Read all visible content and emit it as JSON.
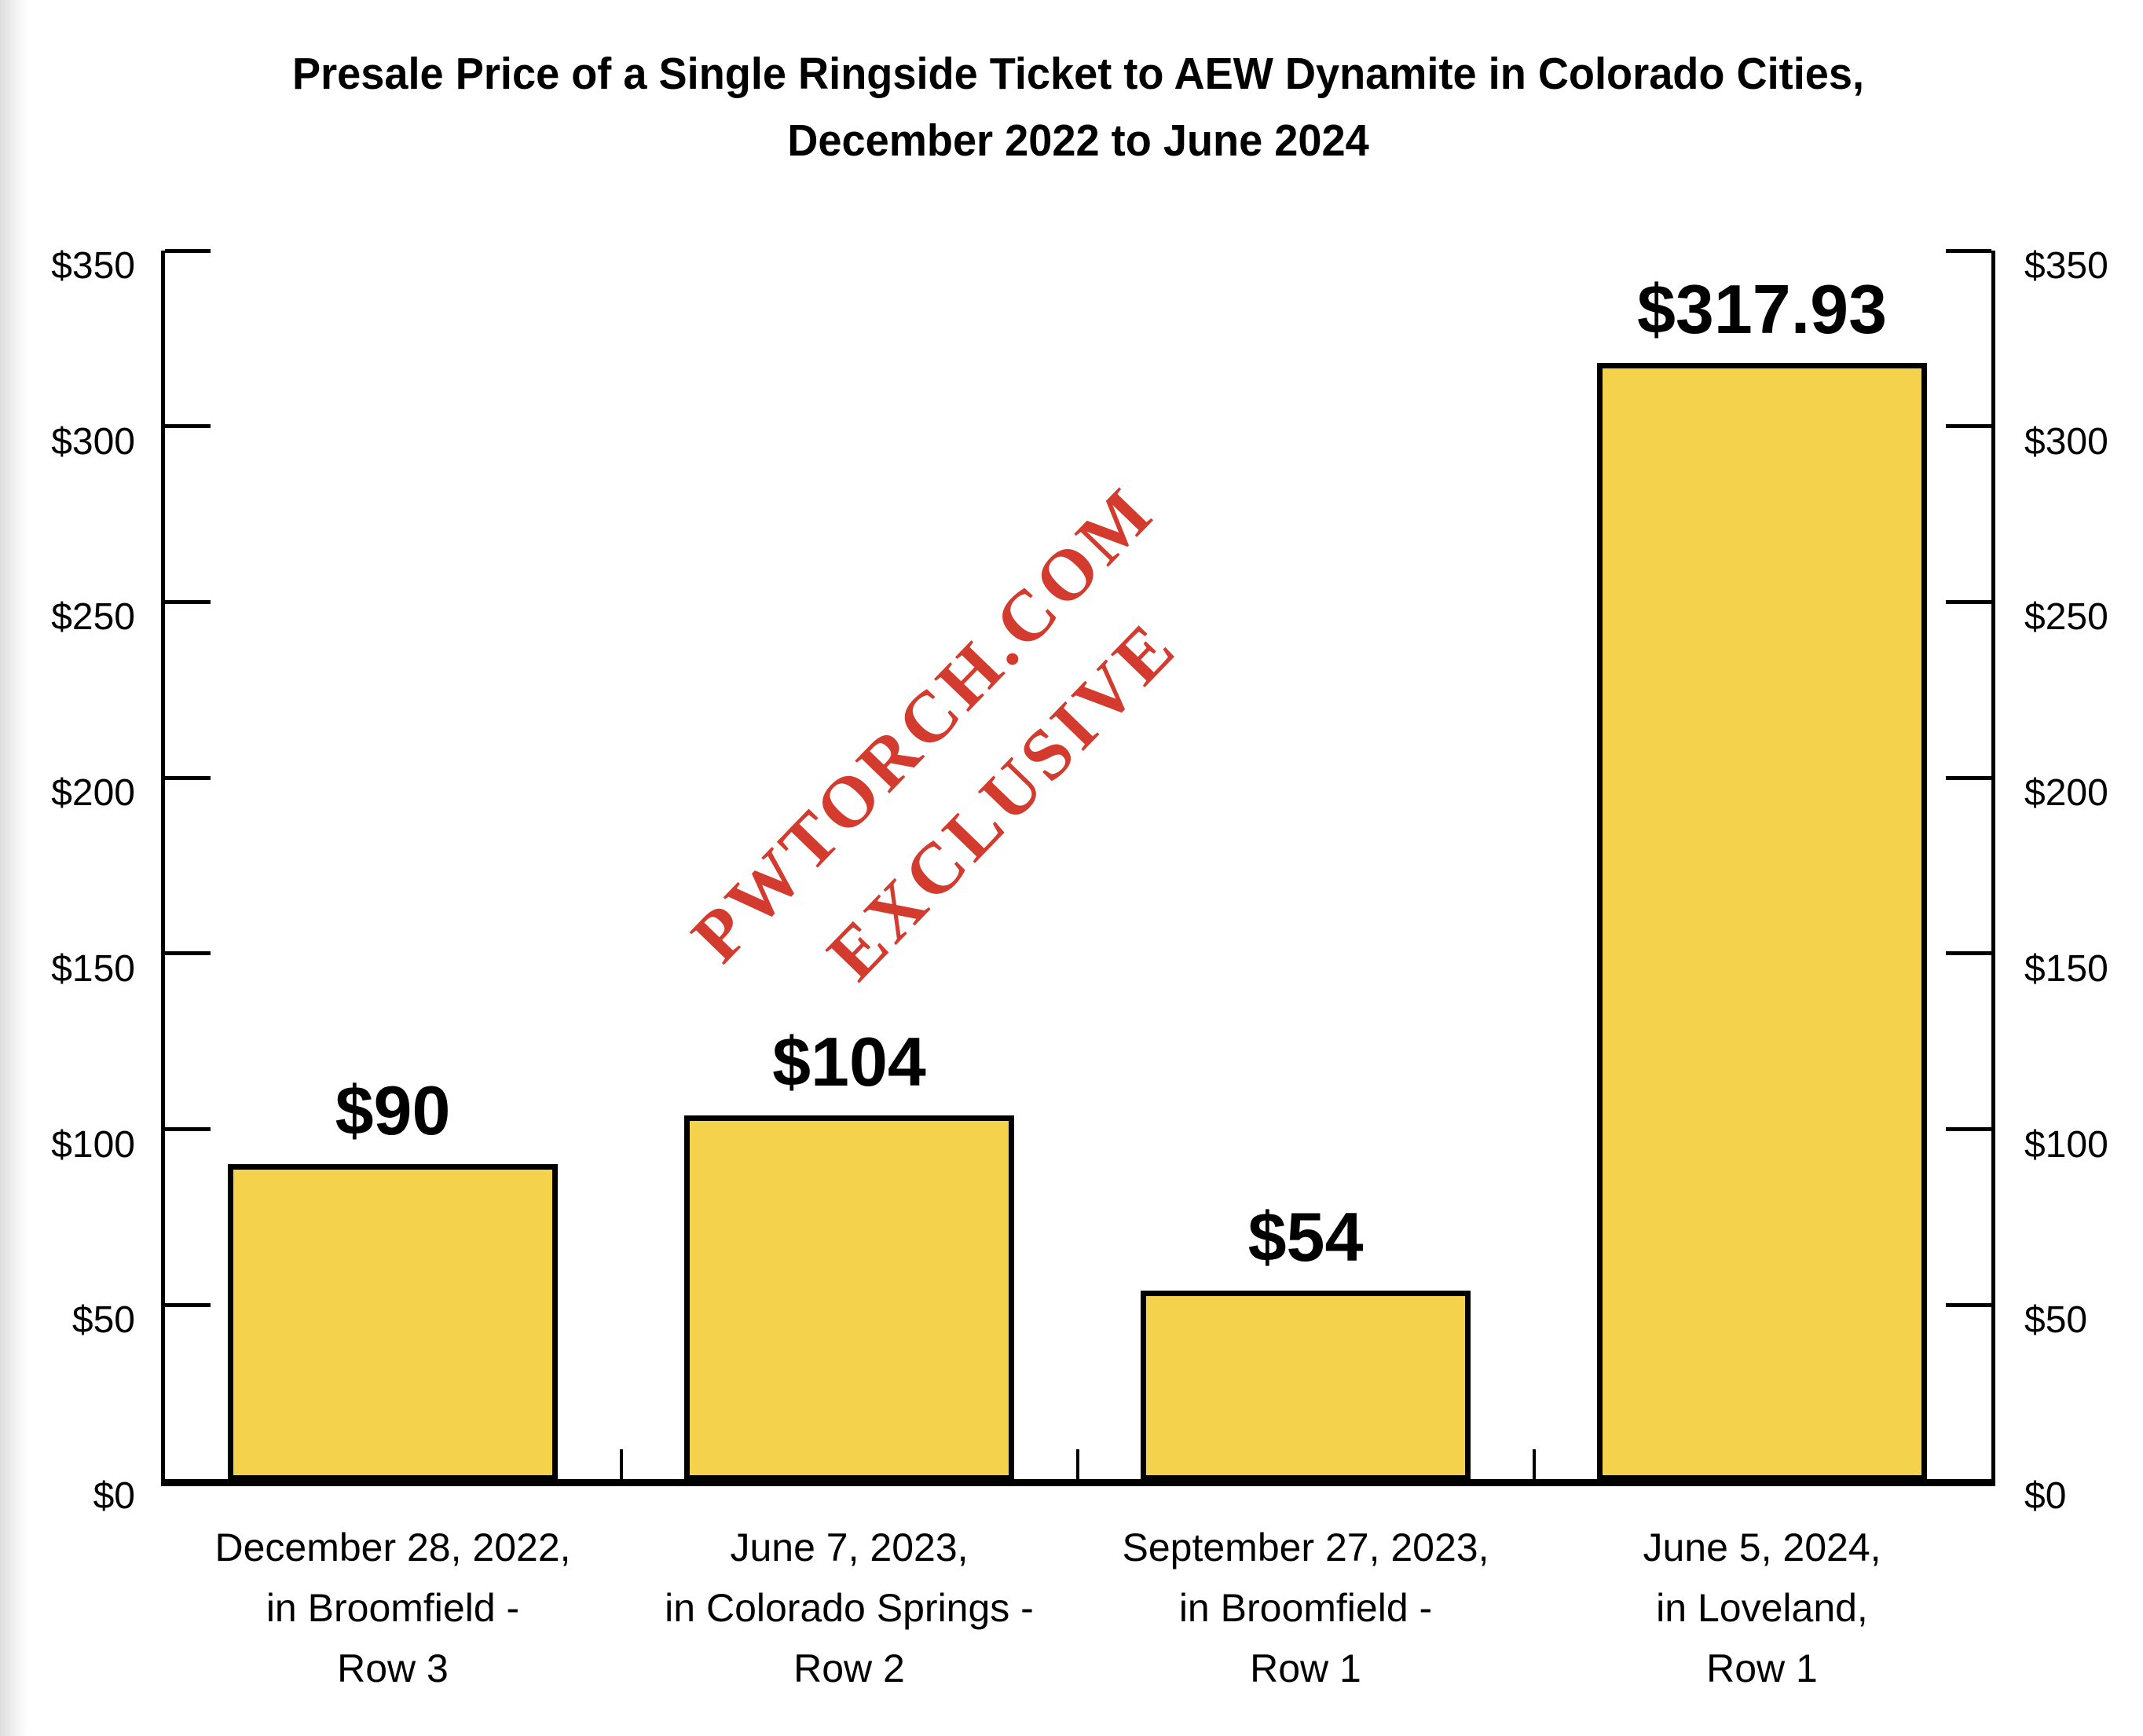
{
  "header": {
    "title_line1": "Presale Price of a Single Ringside Ticket to AEW Dynamite in Colorado Cities,",
    "title_line2": "December 2022 to June 2024"
  },
  "watermark": {
    "line1": "PWTORCH.COM",
    "line2": "EXCLUSIVE",
    "color": "#d23b2d"
  },
  "chart_data": {
    "type": "bar",
    "title": "Presale Price of a Single Ringside Ticket to AEW Dynamite in Colorado Cities, December 2022 to June 2024",
    "categories": [
      "December 28, 2022, in Broomfield - Row 3",
      "June 7, 2023, in Colorado Springs - Row 2",
      "September 27, 2023, in Broomfield - Row 1",
      "June 5, 2024, in Loveland, Row 1"
    ],
    "category_lines": [
      [
        "December 28, 2022,",
        "in Broomfield -",
        "Row 3"
      ],
      [
        "June 7, 2023,",
        "in Colorado Springs -",
        "Row 2"
      ],
      [
        "September 27, 2023,",
        "in Broomfield -",
        "Row 1"
      ],
      [
        "June 5, 2024,",
        "in Loveland,",
        "Row 1"
      ]
    ],
    "values": [
      90,
      104,
      54,
      317.93
    ],
    "value_labels": [
      "$90",
      "$104",
      "$54",
      "$317.93"
    ],
    "xlabel": "",
    "ylabel": "",
    "ylim": [
      0,
      350
    ],
    "ytick_values": [
      0,
      50,
      100,
      150,
      200,
      250,
      300,
      350
    ],
    "ytick_labels": [
      "$0",
      "$50",
      "$100",
      "$150",
      "$200",
      "$250",
      "$300",
      "$350"
    ],
    "y_axis_sides": "both",
    "ticks_direction": "inward",
    "grid": false,
    "legend": "none",
    "bar_color": "#f5d24c",
    "bar_border_color": "#000000",
    "axis_color": "#000000",
    "watermark_text": "PWTORCH.COM EXCLUSIVE"
  }
}
